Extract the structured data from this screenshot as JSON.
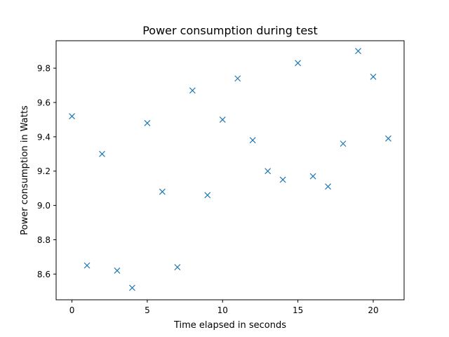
{
  "chart_data": {
    "type": "scatter",
    "title": "Power consumption during test",
    "xlabel": "Time elapsed in seconds",
    "ylabel": "Power consumption in Watts",
    "xlim": [
      -1.05,
      22.05
    ],
    "ylim": [
      8.45,
      9.96
    ],
    "xticks": [
      0,
      5,
      10,
      15,
      20
    ],
    "yticks": [
      8.6,
      8.8,
      9.0,
      9.2,
      9.4,
      9.6,
      9.8
    ],
    "grid": false,
    "marker": "x",
    "color": "#1f77b4",
    "points": [
      {
        "x": 0,
        "y": 9.52
      },
      {
        "x": 1,
        "y": 8.65
      },
      {
        "x": 2,
        "y": 9.3
      },
      {
        "x": 3,
        "y": 8.62
      },
      {
        "x": 4,
        "y": 8.52
      },
      {
        "x": 5,
        "y": 9.48
      },
      {
        "x": 6,
        "y": 9.08
      },
      {
        "x": 7,
        "y": 8.64
      },
      {
        "x": 8,
        "y": 9.67
      },
      {
        "x": 9,
        "y": 9.06
      },
      {
        "x": 10,
        "y": 9.5
      },
      {
        "x": 11,
        "y": 9.74
      },
      {
        "x": 12,
        "y": 9.38
      },
      {
        "x": 13,
        "y": 9.2
      },
      {
        "x": 14,
        "y": 9.15
      },
      {
        "x": 15,
        "y": 9.83
      },
      {
        "x": 16,
        "y": 9.17
      },
      {
        "x": 17,
        "y": 9.11
      },
      {
        "x": 18,
        "y": 9.36
      },
      {
        "x": 19,
        "y": 9.9
      },
      {
        "x": 20,
        "y": 9.75
      },
      {
        "x": 21,
        "y": 9.39
      }
    ]
  }
}
